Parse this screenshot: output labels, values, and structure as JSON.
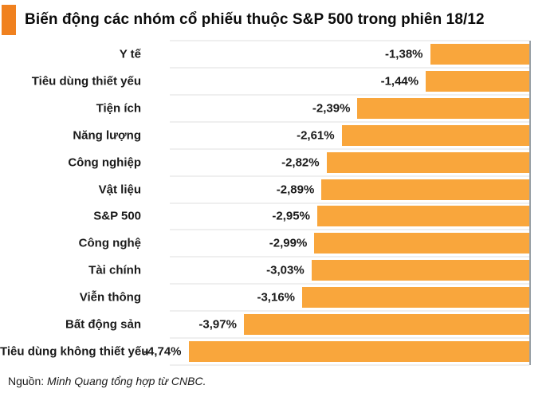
{
  "title": "Biến động các nhóm cổ phiếu thuộc S&P 500 trong phiên 18/12",
  "source": {
    "prefix": "Nguồn: ",
    "text": "Minh Quang tổng hợp từ CNBC."
  },
  "colors": {
    "accent": "#F0811F",
    "bar": "#F9A63C",
    "axis": "#9AA2A8",
    "gridline": "#EFEFEF"
  },
  "chart_data": {
    "type": "bar",
    "orientation": "horizontal",
    "title": "Biến động các nhóm cổ phiếu thuộc S&P 500 trong phiên 18/12",
    "xlabel": "",
    "ylabel": "",
    "xlim": [
      -5,
      0
    ],
    "grid": "row-separators-only",
    "legend": "none",
    "value_label_position": "left-of-bar",
    "categories": [
      "Y tế",
      "Tiêu dùng thiết yếu",
      "Tiện ích",
      "Năng lượng",
      "Công nghiệp",
      "Vật liệu",
      "S&P 500",
      "Công nghệ",
      "Tài chính",
      "Viễn thông",
      "Bất động sản",
      "Tiêu dùng không thiết yếu"
    ],
    "values": [
      -1.38,
      -1.44,
      -2.39,
      -2.61,
      -2.82,
      -2.89,
      -2.95,
      -2.99,
      -3.03,
      -3.16,
      -3.97,
      -4.74
    ],
    "value_labels": [
      "-1,38%",
      "-1,44%",
      "-2,39%",
      "-2,61%",
      "-2,82%",
      "-2,89%",
      "-2,95%",
      "-2,99%",
      "-3,03%",
      "-3,16%",
      "-3,97%",
      "-4,74%"
    ]
  }
}
